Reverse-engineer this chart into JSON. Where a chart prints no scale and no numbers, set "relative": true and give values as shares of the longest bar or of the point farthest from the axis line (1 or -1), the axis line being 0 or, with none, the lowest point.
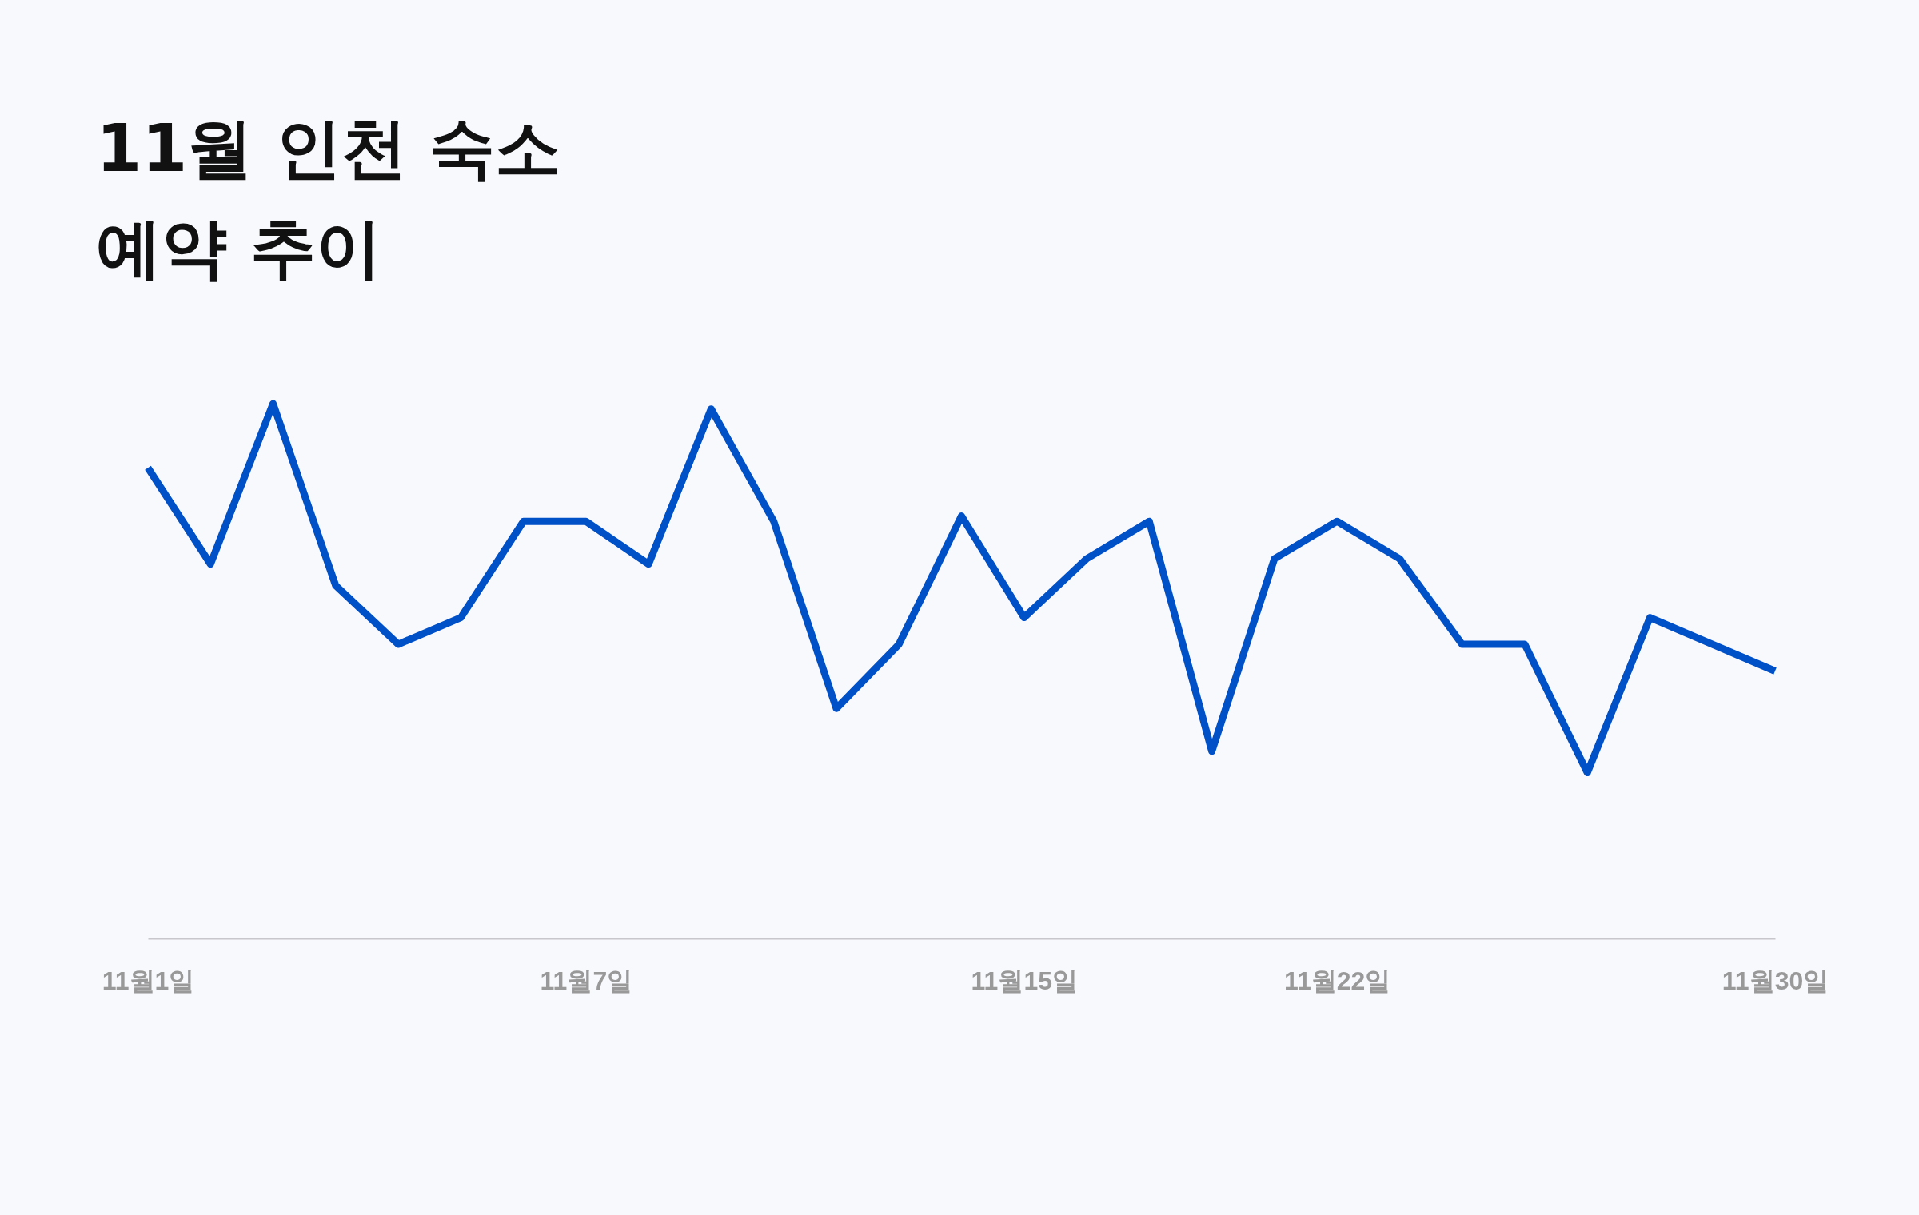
{
  "chart_data": {
    "type": "line",
    "title": "11월 인천 숙소\n예약 추이",
    "relative": true,
    "categories": [
      "11월1일",
      null,
      null,
      null,
      null,
      null,
      null,
      "11월7일",
      null,
      null,
      null,
      null,
      null,
      null,
      "11월15일",
      null,
      null,
      null,
      null,
      "11월22일",
      null,
      null,
      null,
      null,
      null,
      null,
      "11월30일"
    ],
    "series": [
      {
        "color": "#0050c8",
        "values": [
          0.88,
          0.7,
          1.0,
          0.66,
          0.55,
          0.6,
          0.78,
          0.78,
          0.7,
          0.99,
          0.78,
          0.43,
          0.55,
          0.79,
          0.6,
          0.71,
          0.78,
          0.35,
          0.71,
          0.78,
          0.71,
          0.55,
          0.55,
          0.31,
          0.6,
          0.55,
          0.5
        ]
      }
    ],
    "grid": false,
    "marker": "none",
    "line_style": "solid"
  }
}
